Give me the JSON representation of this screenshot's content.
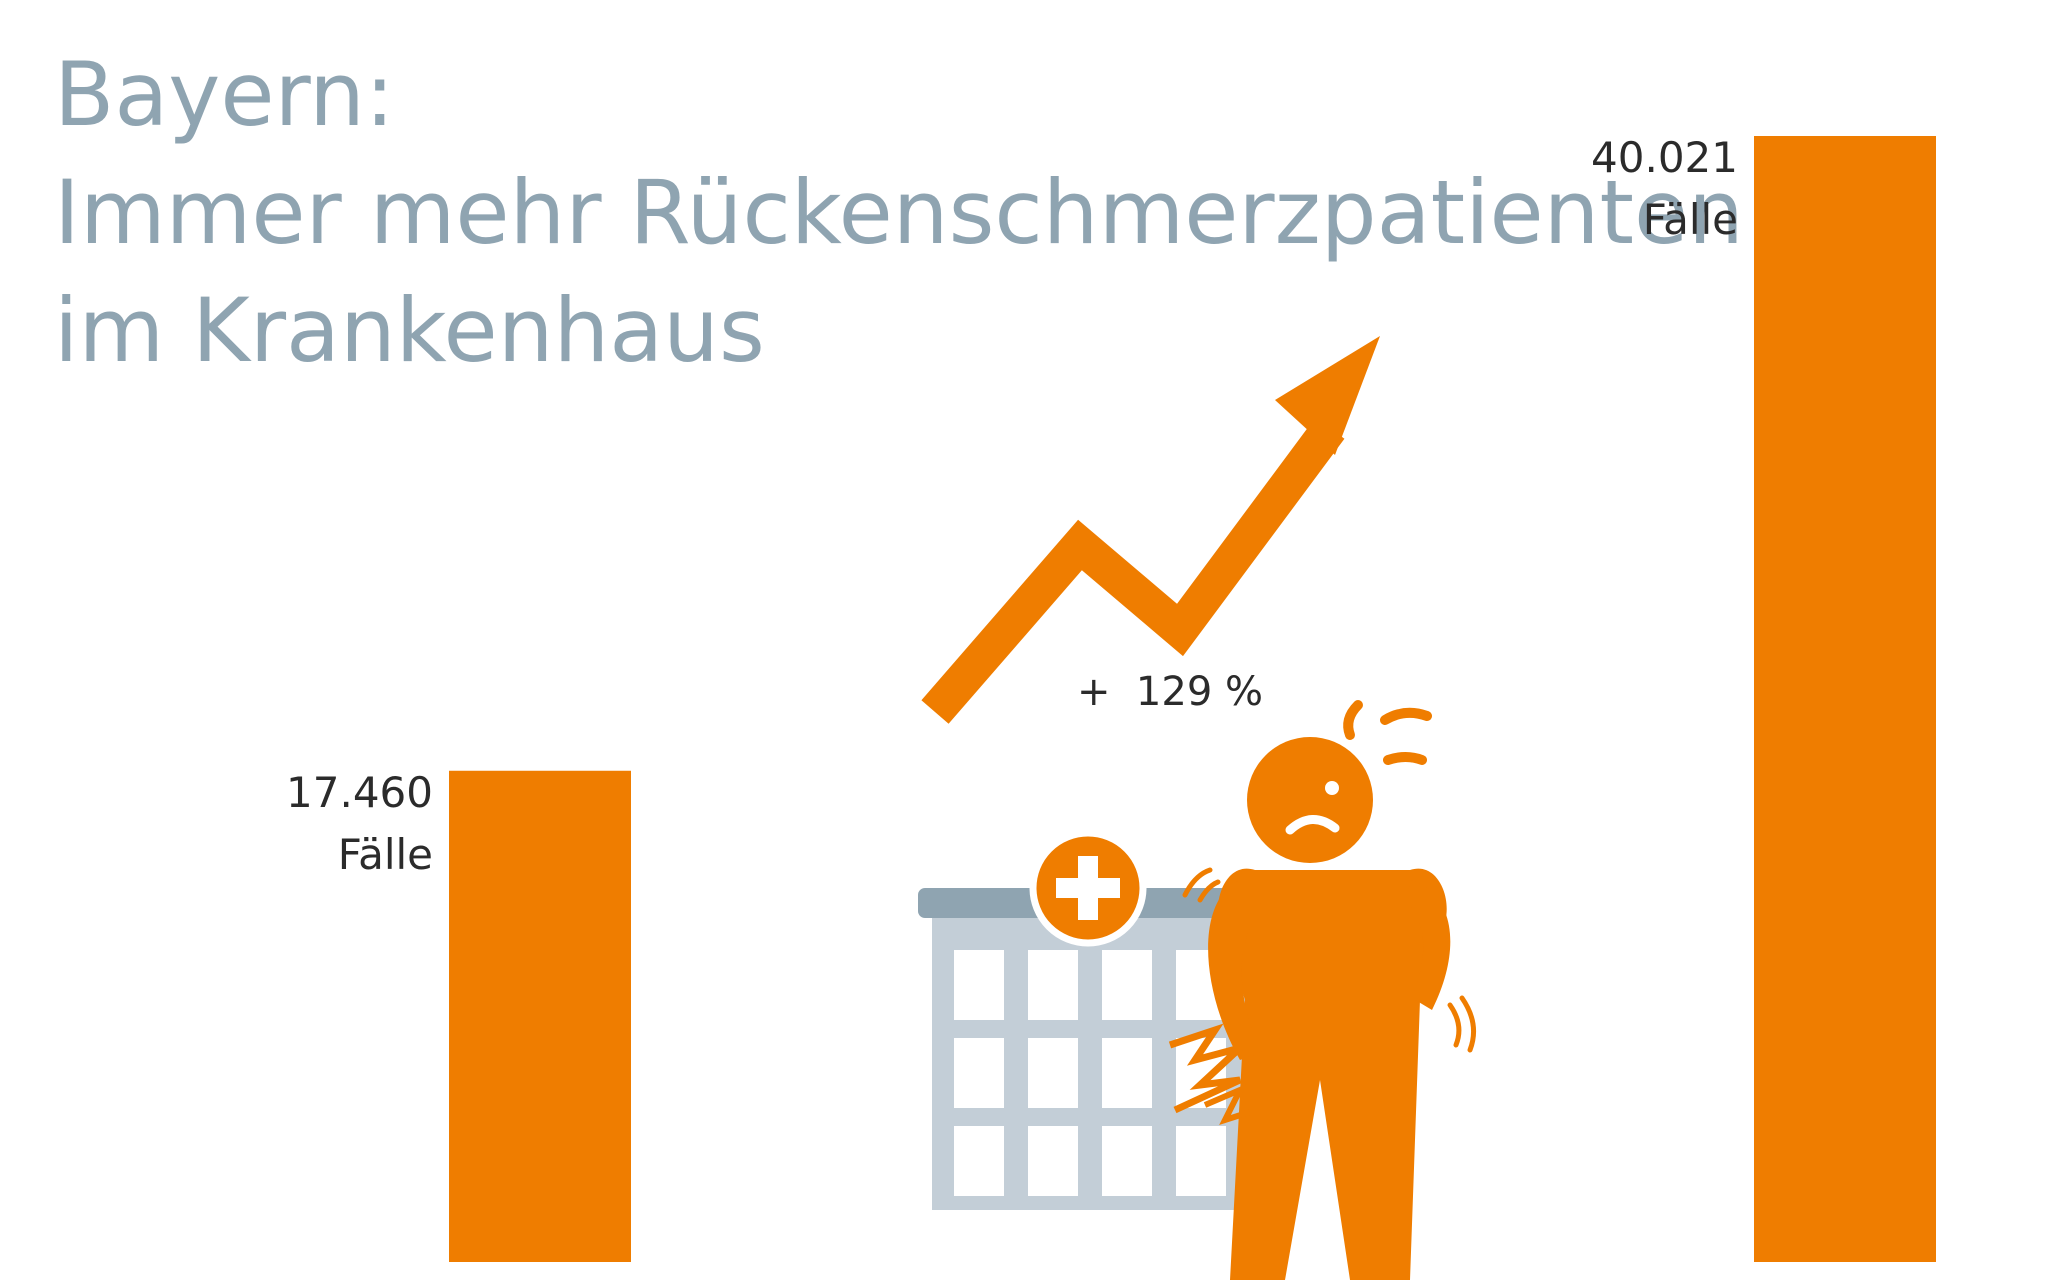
{
  "title": {
    "line1": "Bayern:",
    "line2": "Immer mehr Rückenschmerzpatienten",
    "line3": "im Krankenhaus"
  },
  "colors": {
    "bar": "#ef7d00",
    "title": "#8fa4b1",
    "building": "#c3ced7",
    "building_roof": "#8fa4b1",
    "text": "#2b2b2b"
  },
  "icons": [
    "trend-arrow-icon",
    "hospital-icon",
    "person-back-pain-icon"
  ],
  "chart_data": {
    "type": "bar",
    "categories": [
      "",
      ""
    ],
    "values": [
      17460,
      40021
    ],
    "value_labels": [
      "17.460",
      "40.021"
    ],
    "unit_label": "Fälle",
    "change_label": "+  129 %",
    "title": "Bayern: Immer mehr Rückenschmerzpatienten im Krankenhaus",
    "xlabel": "",
    "ylabel": "",
    "ylim": [
      0,
      40021
    ],
    "grid": false,
    "legend": "none"
  }
}
